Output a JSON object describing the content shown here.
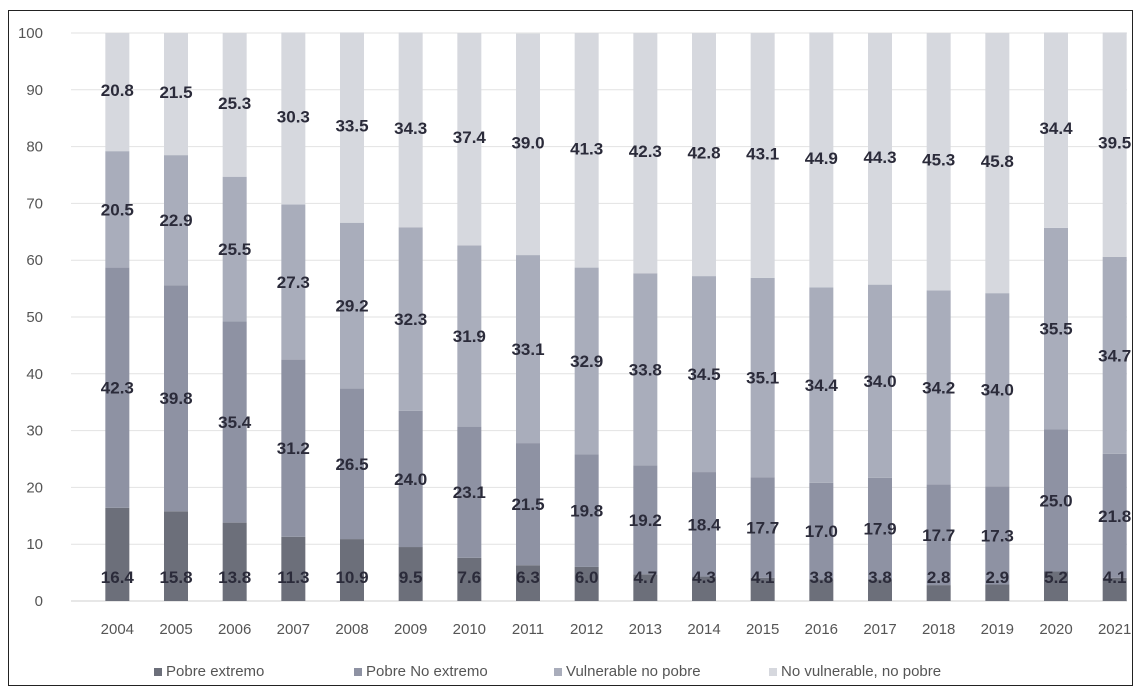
{
  "chart_data": {
    "type": "bar",
    "stacked": true,
    "title": "",
    "xlabel": "",
    "ylabel": "",
    "ylim": [
      0,
      100
    ],
    "yticks": [
      0,
      10,
      20,
      30,
      40,
      50,
      60,
      70,
      80,
      90,
      100
    ],
    "grid": true,
    "legend_position": "bottom",
    "categories": [
      "2004",
      "2005",
      "2006",
      "2007",
      "2008",
      "2009",
      "2010",
      "2011",
      "2012",
      "2013",
      "2014",
      "2015",
      "2016",
      "2017",
      "2018",
      "2019",
      "2020",
      "2021"
    ],
    "series": [
      {
        "name": "Pobre extremo",
        "color": "#6c6f7a",
        "values": [
          16.4,
          15.8,
          13.8,
          11.3,
          10.9,
          9.5,
          7.6,
          6.3,
          6.0,
          4.7,
          4.3,
          4.1,
          3.8,
          3.8,
          2.8,
          2.9,
          5.2,
          4.1
        ]
      },
      {
        "name": "Pobre No extremo",
        "color": "#8e92a3",
        "values": [
          42.3,
          39.8,
          35.4,
          31.2,
          26.5,
          24.0,
          23.1,
          21.5,
          19.8,
          19.2,
          18.4,
          17.7,
          17.0,
          17.9,
          17.7,
          17.3,
          25.0,
          21.8
        ]
      },
      {
        "name": "Vulnerable no pobre",
        "color": "#a9adbb",
        "values": [
          20.5,
          22.9,
          25.5,
          27.3,
          29.2,
          32.3,
          31.9,
          33.1,
          32.9,
          33.8,
          34.5,
          35.1,
          34.4,
          34.0,
          34.2,
          34.0,
          35.5,
          34.7
        ]
      },
      {
        "name": "No vulnerable, no pobre",
        "color": "#d6d8de",
        "values": [
          20.8,
          21.5,
          25.3,
          30.3,
          33.5,
          34.3,
          37.4,
          39.0,
          41.3,
          42.3,
          42.8,
          43.1,
          44.9,
          44.3,
          45.3,
          45.8,
          34.4,
          39.5
        ]
      }
    ]
  }
}
